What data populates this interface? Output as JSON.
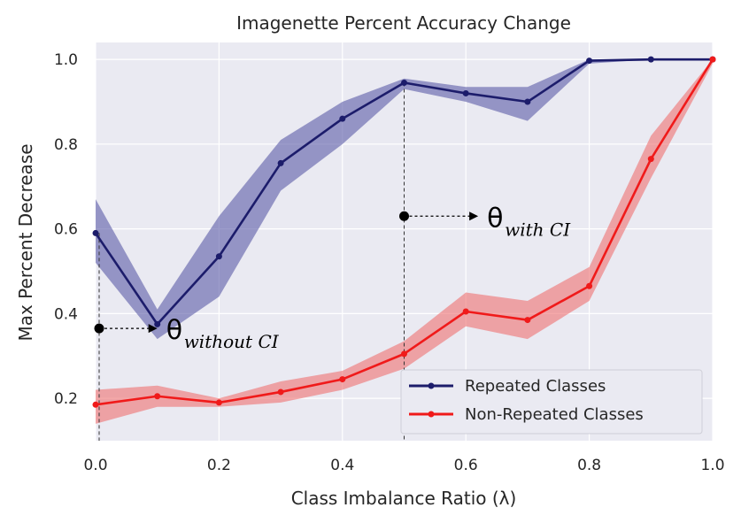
{
  "chart_data": {
    "type": "line",
    "title": "Imagenette Percent Accuracy Change",
    "xlabel": "Class Imbalance Ratio (λ)",
    "ylabel": "Max Percent Decrease",
    "xlim": [
      0.0,
      1.0
    ],
    "ylim": [
      0.1,
      1.04
    ],
    "x_ticks": [
      0.0,
      0.2,
      0.4,
      0.6,
      0.8,
      1.0
    ],
    "x_tick_labels": [
      "0.0",
      "0.2",
      "0.4",
      "0.6",
      "0.8",
      "1.0"
    ],
    "y_ticks": [
      0.2,
      0.4,
      0.6,
      0.8,
      1.0
    ],
    "y_tick_labels": [
      "0.2",
      "0.4",
      "0.6",
      "0.8",
      "1.0"
    ],
    "grid": true,
    "x": [
      0.0,
      0.1,
      0.2,
      0.3,
      0.4,
      0.5,
      0.6,
      0.7,
      0.8,
      0.9,
      1.0
    ],
    "series": [
      {
        "name": "Repeated Classes",
        "color": "#1c1c6b",
        "band_color": "#5a5aa6",
        "values": [
          0.59,
          0.375,
          0.535,
          0.755,
          0.86,
          0.945,
          0.92,
          0.9,
          0.997,
          1.0,
          1.0
        ],
        "ci_low": [
          0.52,
          0.34,
          0.44,
          0.69,
          0.8,
          0.93,
          0.9,
          0.855,
          0.99,
          1.0,
          1.0
        ],
        "ci_high": [
          0.67,
          0.41,
          0.63,
          0.81,
          0.9,
          0.955,
          0.935,
          0.935,
          1.0,
          1.0,
          1.0
        ]
      },
      {
        "name": "Non-Repeated Classes",
        "color": "#f01a1a",
        "band_color": "#ee7070",
        "values": [
          0.185,
          0.205,
          0.19,
          0.215,
          0.245,
          0.305,
          0.405,
          0.385,
          0.465,
          0.765,
          1.0
        ],
        "ci_low": [
          0.14,
          0.18,
          0.18,
          0.19,
          0.22,
          0.27,
          0.37,
          0.34,
          0.43,
          0.72,
          0.99
        ],
        "ci_high": [
          0.22,
          0.23,
          0.2,
          0.24,
          0.265,
          0.335,
          0.45,
          0.43,
          0.51,
          0.82,
          1.0
        ]
      }
    ],
    "legend": {
      "placement": "lower-right",
      "entries": [
        "Repeated Classes",
        "Non-Repeated Classes"
      ]
    },
    "annotations": [
      {
        "symbol": "θ",
        "subscript": "without CI",
        "point": [
          0.0,
          0.365
        ],
        "target": [
          0.1,
          0.365
        ],
        "drop_from": 0.59
      },
      {
        "symbol": "θ",
        "subscript": "with CI",
        "point": [
          0.5,
          0.63
        ],
        "target": [
          0.62,
          0.63
        ],
        "drop_from": 0.945
      }
    ],
    "background_color": "#eaeaf2",
    "grid_color": "#ffffff"
  }
}
